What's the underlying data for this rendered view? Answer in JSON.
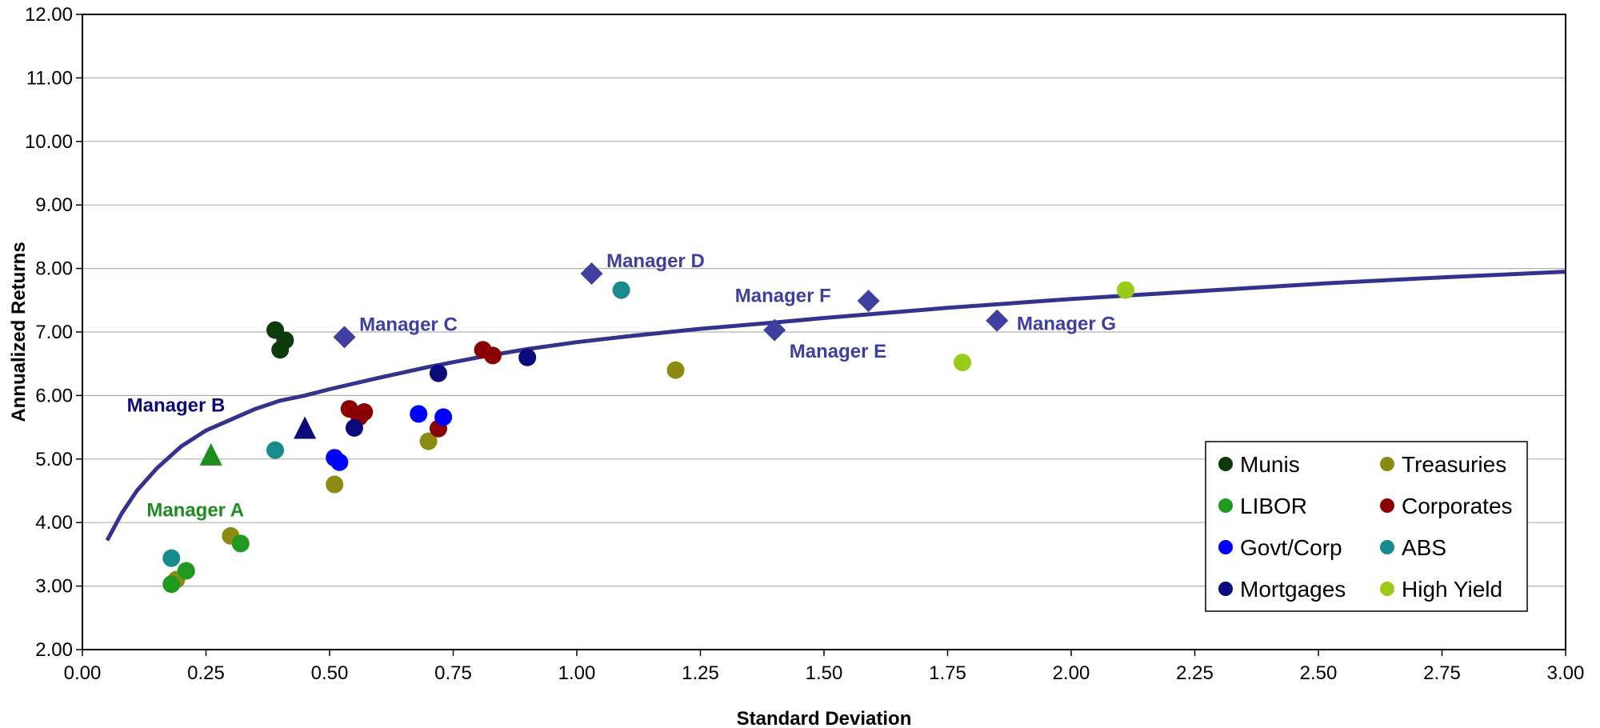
{
  "chart_data": {
    "type": "scatter",
    "title": "",
    "xlabel": "Standard Deviation",
    "ylabel": "Annualized Returns",
    "xlim": [
      0,
      3
    ],
    "ylim": [
      2,
      12
    ],
    "x_ticks": [
      "0.00",
      "0.25",
      "0.50",
      "0.75",
      "1.00",
      "1.25",
      "1.50",
      "1.75",
      "2.00",
      "2.25",
      "2.50",
      "2.75",
      "3.00"
    ],
    "y_ticks": [
      "2.00",
      "3.00",
      "4.00",
      "5.00",
      "6.00",
      "7.00",
      "8.00",
      "9.00",
      "10.00",
      "11.00",
      "12.00"
    ],
    "grid": "horizontal",
    "legend_position": "bottom-right",
    "series": [
      {
        "name": "Munis",
        "color": "#0b3b0b",
        "marker": "circle",
        "points": [
          [
            0.39,
            7.03
          ],
          [
            0.41,
            6.87
          ],
          [
            0.4,
            6.72
          ]
        ]
      },
      {
        "name": "Treasuries",
        "color": "#8b8b14",
        "marker": "circle",
        "points": [
          [
            0.19,
            3.1
          ],
          [
            0.3,
            3.79
          ],
          [
            0.51,
            4.6
          ],
          [
            0.7,
            5.28
          ],
          [
            1.2,
            6.4
          ]
        ]
      },
      {
        "name": "LIBOR",
        "color": "#1f9a1f",
        "marker": "circle",
        "points": [
          [
            0.18,
            3.03
          ],
          [
            0.21,
            3.24
          ],
          [
            0.32,
            3.67
          ]
        ]
      },
      {
        "name": "Corporates",
        "color": "#8b0000",
        "marker": "circle",
        "points": [
          [
            0.54,
            5.79
          ],
          [
            0.56,
            5.66
          ],
          [
            0.57,
            5.74
          ],
          [
            0.72,
            5.48
          ],
          [
            0.81,
            6.72
          ],
          [
            0.83,
            6.63
          ]
        ]
      },
      {
        "name": "Govt/Corp",
        "color": "#0000ff",
        "marker": "circle",
        "points": [
          [
            0.51,
            5.02
          ],
          [
            0.52,
            4.95
          ],
          [
            0.68,
            5.71
          ],
          [
            0.73,
            5.66
          ]
        ]
      },
      {
        "name": "ABS",
        "color": "#178c8c",
        "marker": "circle",
        "points": [
          [
            0.18,
            3.44
          ],
          [
            0.39,
            5.14
          ],
          [
            1.09,
            7.66
          ]
        ]
      },
      {
        "name": "Mortgages",
        "color": "#0a0a7a",
        "marker": "circle",
        "points": [
          [
            0.55,
            5.49
          ],
          [
            0.72,
            6.35
          ],
          [
            0.9,
            6.6
          ]
        ]
      },
      {
        "name": "High Yield",
        "color": "#99cc1a",
        "marker": "circle",
        "points": [
          [
            1.78,
            6.52
          ],
          [
            2.11,
            7.66
          ]
        ]
      }
    ],
    "frontier": {
      "color": "#33338f",
      "points": [
        [
          0.05,
          3.72
        ],
        [
          0.08,
          4.15
        ],
        [
          0.11,
          4.5
        ],
        [
          0.15,
          4.85
        ],
        [
          0.2,
          5.2
        ],
        [
          0.25,
          5.45
        ],
        [
          0.3,
          5.62
        ],
        [
          0.35,
          5.79
        ],
        [
          0.4,
          5.92
        ],
        [
          0.45,
          6.0
        ],
        [
          0.5,
          6.1
        ],
        [
          0.6,
          6.28
        ],
        [
          0.7,
          6.45
        ],
        [
          0.8,
          6.6
        ],
        [
          0.9,
          6.73
        ],
        [
          1.0,
          6.84
        ],
        [
          1.1,
          6.93
        ],
        [
          1.25,
          7.05
        ],
        [
          1.4,
          7.15
        ],
        [
          1.5,
          7.22
        ],
        [
          1.75,
          7.38
        ],
        [
          2.0,
          7.52
        ],
        [
          2.25,
          7.64
        ],
        [
          2.5,
          7.76
        ],
        [
          2.75,
          7.86
        ],
        [
          3.0,
          7.95
        ]
      ]
    },
    "managers": [
      {
        "label": "Manager A",
        "x": 0.26,
        "y": 5.05,
        "marker": "triangle",
        "color": "#1f8c1f",
        "label_x": 0.13,
        "label_y": 4.2
      },
      {
        "label": "Manager B",
        "x": 0.45,
        "y": 5.47,
        "marker": "triangle",
        "color": "#0a0a7a",
        "label_x": 0.09,
        "label_y": 5.85
      },
      {
        "label": "Manager C",
        "x": 0.53,
        "y": 6.92,
        "marker": "diamond",
        "color": "#3f3f9f",
        "label_x": 0.56,
        "label_y": 7.12
      },
      {
        "label": "Manager D",
        "x": 1.03,
        "y": 7.92,
        "marker": "diamond",
        "color": "#3f3f9f",
        "label_x": 1.06,
        "label_y": 8.12
      },
      {
        "label": "Manager E",
        "x": 1.4,
        "y": 7.03,
        "marker": "diamond",
        "color": "#3f3f9f",
        "label_x": 1.43,
        "label_y": 6.7
      },
      {
        "label": "Manager F",
        "x": 1.59,
        "y": 7.49,
        "marker": "diamond",
        "color": "#3f3f9f",
        "label_x": 1.32,
        "label_y": 7.57
      },
      {
        "label": "Manager G",
        "x": 1.85,
        "y": 7.18,
        "marker": "diamond",
        "color": "#3f3f9f",
        "label_x": 1.89,
        "label_y": 7.13
      }
    ]
  }
}
